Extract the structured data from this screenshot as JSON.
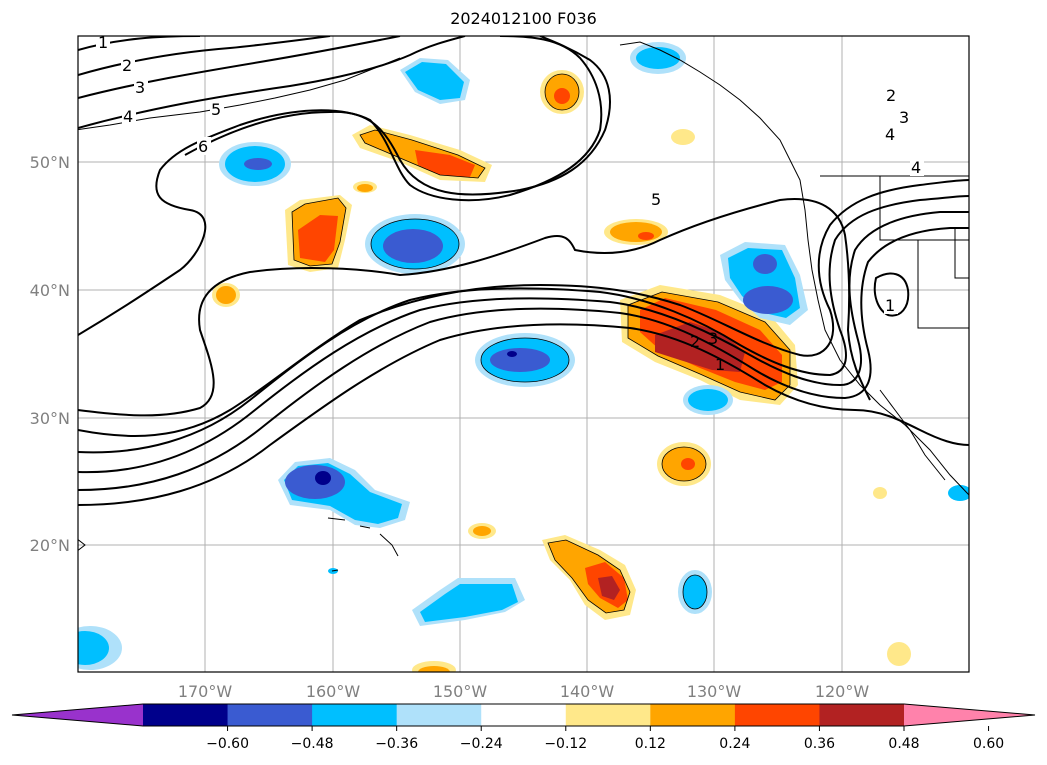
{
  "title": "2024012100 F036",
  "map": {
    "lat_labels": [
      {
        "lat": 50,
        "label": "50°N"
      },
      {
        "lat": 40,
        "label": "40°N"
      },
      {
        "lat": 30,
        "label": "30°N"
      },
      {
        "lat": 20,
        "label": "20°N"
      }
    ],
    "lon_labels": [
      {
        "lon": -170,
        "label": "170°W"
      },
      {
        "lon": -160,
        "label": "160°W"
      },
      {
        "lon": -150,
        "label": "150°W"
      },
      {
        "lon": -140,
        "label": "140°W"
      },
      {
        "lon": -130,
        "label": "130°W"
      },
      {
        "lon": -120,
        "label": "120°W"
      }
    ],
    "contour_labels": [
      "1",
      "2",
      "3",
      "4",
      "5",
      "6"
    ]
  },
  "colorbar": {
    "colors": [
      "#9932cc",
      "#00008b",
      "#3a5bd1",
      "#00bfff",
      "#afe1fa",
      "#ffffff",
      "#ffe88a",
      "#ffa500",
      "#ff4500",
      "#b22222",
      "#ff82ab"
    ],
    "ticks": [
      "−0.60",
      "−0.48",
      "−0.36",
      "−0.24",
      "−0.12",
      "0.12",
      "0.24",
      "0.36",
      "0.48",
      "0.60"
    ]
  }
}
